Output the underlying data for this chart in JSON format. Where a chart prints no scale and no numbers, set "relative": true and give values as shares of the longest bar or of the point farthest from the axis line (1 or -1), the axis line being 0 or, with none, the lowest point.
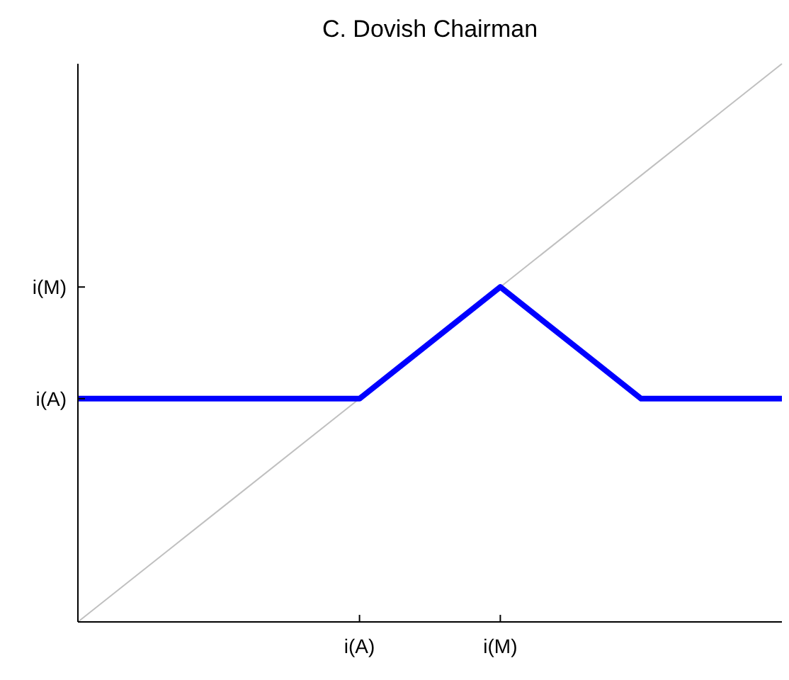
{
  "chart_data": {
    "type": "line",
    "title": "C. Dovish Chairman",
    "relative": true,
    "categories": [
      null,
      null,
      "i(A)",
      "i(M)",
      null,
      null
    ],
    "annotations": [
      "i(A)",
      "i(M)"
    ],
    "grid": false,
    "series": [
      {
        "color": "#c0c0c0",
        "values": [
          0,
          0.2,
          0.4,
          0.6,
          0.8,
          1
        ]
      },
      {
        "color": "#0000ff",
        "values": [
          0.4,
          0.4,
          0.4,
          0.6,
          0.4,
          0.4
        ]
      }
    ]
  }
}
